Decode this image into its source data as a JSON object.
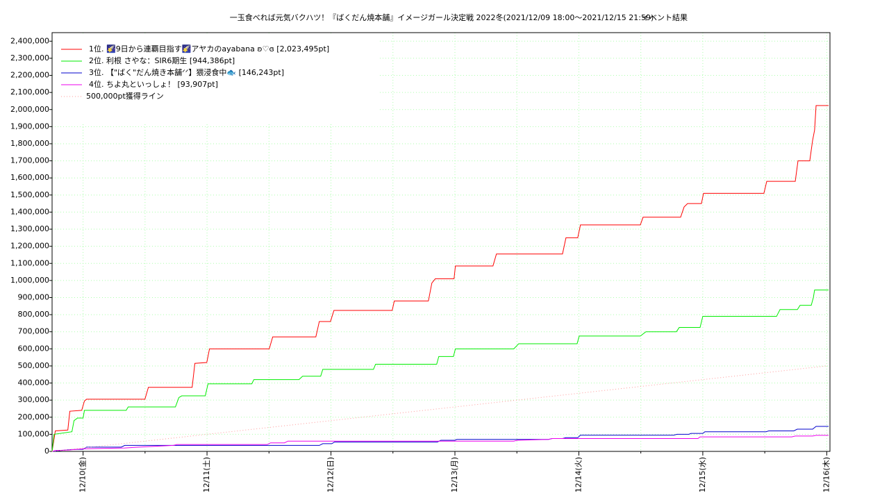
{
  "chart_data": {
    "type": "line",
    "title": "一玉食べれば元気バクハツ！『ばくだん焼本舗』イメージガール決定戦 2022冬(2021/12/09 18:00～2021/12/15 21:59)",
    "subtitle": "イベント結果",
    "xlim": [
      9.75,
      16.026
    ],
    "ylim": [
      0,
      2450000
    ],
    "xticks": [
      {
        "value": 10,
        "label": "12/10(金)"
      },
      {
        "value": 11,
        "label": "12/11(土)"
      },
      {
        "value": 12,
        "label": "12/12(日)"
      },
      {
        "value": 13,
        "label": "12/13(月)"
      },
      {
        "value": 14,
        "label": "12/14(火)"
      },
      {
        "value": 15,
        "label": "12/15(水)"
      },
      {
        "value": 16,
        "label": "12/16(木)"
      }
    ],
    "xminorticks": [
      10.5,
      11.5,
      12.5,
      13.5,
      14.5,
      15.5
    ],
    "yticks": [
      0,
      {
        "value": 100000,
        "label": "100,000"
      },
      {
        "value": 200000,
        "label": "200,000"
      },
      {
        "value": 300000,
        "label": "300,000"
      },
      {
        "value": 400000,
        "label": "400,000"
      },
      {
        "value": 500000,
        "label": "500,000"
      },
      {
        "value": 600000,
        "label": "600,000"
      },
      {
        "value": 700000,
        "label": "700,000"
      },
      {
        "value": 800000,
        "label": "800,000"
      },
      {
        "value": 900000,
        "label": "900,000"
      },
      {
        "value": 1000000,
        "label": "1,000,000"
      },
      {
        "value": 1100000,
        "label": "1,100,000"
      },
      {
        "value": 1200000,
        "label": "1,200,000"
      },
      {
        "value": 1300000,
        "label": "1,300,000"
      },
      {
        "value": 1400000,
        "label": "1,400,000"
      },
      {
        "value": 1500000,
        "label": "1,500,000"
      },
      {
        "value": 1600000,
        "label": "1,600,000"
      },
      {
        "value": 1700000,
        "label": "1,700,000"
      },
      {
        "value": 1800000,
        "label": "1,800,000"
      },
      {
        "value": 1900000,
        "label": "1,900,000"
      },
      {
        "value": 2000000,
        "label": "2,000,000"
      },
      {
        "value": 2100000,
        "label": "2,100,000"
      },
      {
        "value": 2200000,
        "label": "2,200,000"
      },
      {
        "value": 2300000,
        "label": "2,300,000"
      },
      {
        "value": 2400000,
        "label": "2,400,000"
      }
    ],
    "grid": true,
    "legend": "upper left",
    "series": [
      {
        "name": "1位. 🌠9日から連覇目指す🌠アヤカのayabana ʚ♡ɞ [2,023,495pt]",
        "color": "#ff0000",
        "linestyle": "solid",
        "x": [
          9.75,
          9.776,
          9.877,
          9.893,
          9.989,
          10.011,
          10.028,
          10.499,
          10.527,
          10.88,
          10.902,
          10.998,
          11.02,
          11.502,
          11.53,
          11.878,
          11.906,
          11.996,
          12.024,
          12.494,
          12.511,
          12.786,
          12.814,
          12.842,
          12.993,
          13.004,
          13.307,
          13.335,
          13.868,
          13.896,
          13.991,
          14.013,
          14.496,
          14.518,
          14.821,
          14.849,
          14.877,
          14.989,
          15.006,
          15.493,
          15.516,
          15.746,
          15.768,
          15.863,
          15.886,
          15.902,
          15.914,
          16.015
        ],
        "values": [
          0,
          120000,
          125000,
          235000,
          240000,
          295000,
          305000,
          305000,
          375000,
          375000,
          515000,
          520000,
          600000,
          600000,
          670000,
          670000,
          760000,
          760000,
          825000,
          825000,
          880000,
          880000,
          985000,
          1010000,
          1010000,
          1085000,
          1085000,
          1155000,
          1155000,
          1250000,
          1250000,
          1325000,
          1325000,
          1370000,
          1370000,
          1430000,
          1450000,
          1450000,
          1510000,
          1510000,
          1580000,
          1580000,
          1700000,
          1700000,
          1820000,
          1880000,
          2023495,
          2023495
        ]
      },
      {
        "name": "2位. 利根 さやな：SIR6期生 [944,386pt]",
        "color": "#00ee00",
        "linestyle": "solid",
        "x": [
          9.75,
          9.765,
          9.91,
          9.927,
          9.955,
          10.0,
          10.011,
          10.348,
          10.364,
          10.745,
          10.773,
          10.796,
          10.986,
          11.008,
          11.361,
          11.378,
          11.742,
          11.771,
          11.917,
          11.934,
          12.343,
          12.36,
          12.853,
          12.87,
          12.988,
          13.004,
          13.475,
          13.515,
          13.986,
          14.003,
          14.496,
          14.541,
          14.787,
          14.81,
          14.978,
          15.0,
          15.595,
          15.623,
          15.763,
          15.785,
          15.875,
          15.892,
          15.902,
          16.015
        ],
        "values": [
          0,
          100000,
          115000,
          180000,
          195000,
          195000,
          240000,
          240000,
          260000,
          260000,
          315000,
          325000,
          325000,
          395000,
          395000,
          420000,
          420000,
          440000,
          440000,
          480000,
          480000,
          510000,
          510000,
          555000,
          555000,
          600000,
          600000,
          630000,
          630000,
          675000,
          675000,
          700000,
          700000,
          725000,
          725000,
          790000,
          790000,
          830000,
          830000,
          855000,
          855000,
          900000,
          944386,
          944386
        ]
      },
      {
        "name": "3位. 【\"ばく\"だん焼き本舗ᐟᐟ】猥浸食中🐟 [146,243pt]",
        "color": "#0000cc",
        "linestyle": "solid",
        "x": [
          9.75,
          9.888,
          10.0,
          10.028,
          10.308,
          10.336,
          11.906,
          11.934,
          12.007,
          12.029,
          12.859,
          12.887,
          12.999,
          13.016,
          13.756,
          13.784,
          13.868,
          13.896,
          13.991,
          14.013,
          14.765,
          14.793,
          14.888,
          14.905,
          15.0,
          15.017,
          15.51,
          15.532,
          15.734,
          15.762,
          15.886,
          15.914,
          16.015
        ],
        "values": [
          0,
          10000,
          12000,
          25000,
          25000,
          35000,
          35000,
          45000,
          45000,
          55000,
          55000,
          65000,
          65000,
          70000,
          70000,
          75000,
          75000,
          80000,
          80000,
          95000,
          95000,
          100000,
          100000,
          105000,
          105000,
          115000,
          115000,
          120000,
          120000,
          130000,
          130000,
          146243,
          146243
        ]
      },
      {
        "name": "4位. ちよ丸といっしょ！ [93,907pt]",
        "color": "#ee00ee",
        "linestyle": "solid",
        "x": [
          9.75,
          9.776,
          9.888,
          10.0,
          10.336,
          10.448,
          10.728,
          10.756,
          11.485,
          11.513,
          11.625,
          11.653,
          13.475,
          13.503,
          13.756,
          13.784,
          14.961,
          14.978,
          15.718,
          15.746,
          15.886,
          15.914,
          16.015
        ],
        "values": [
          0,
          5000,
          8000,
          15000,
          20000,
          25000,
          35000,
          40000,
          40000,
          50000,
          50000,
          60000,
          60000,
          65000,
          70000,
          75000,
          75000,
          85000,
          85000,
          90000,
          90000,
          93907,
          93907
        ]
      },
      {
        "name": "500,000pt獲得ライン",
        "color": "#ff9999",
        "linestyle": "dotted",
        "x": [
          9.75,
          16.0
        ],
        "values": [
          0,
          500000
        ]
      }
    ]
  }
}
